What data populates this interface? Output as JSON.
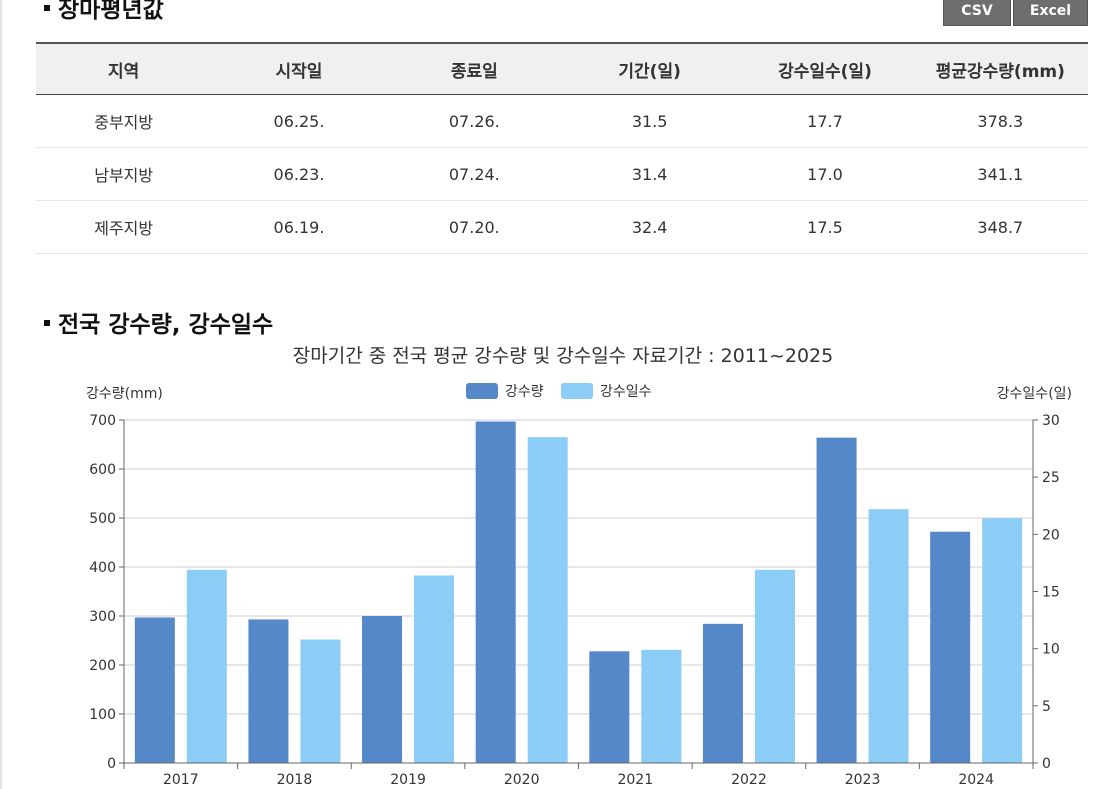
{
  "section1": {
    "title": "장마평년값"
  },
  "buttons": {
    "csv": "CSV",
    "excel": "Excel"
  },
  "table": {
    "headers": [
      "지역",
      "시작일",
      "종료일",
      "기간(일)",
      "강수일수(일)",
      "평균강수량(mm)"
    ],
    "rows": [
      [
        "중부지방",
        "06.25.",
        "07.26.",
        "31.5",
        "17.7",
        "378.3"
      ],
      [
        "남부지방",
        "06.23.",
        "07.24.",
        "31.4",
        "17.0",
        "341.1"
      ],
      [
        "제주지방",
        "06.19.",
        "07.20.",
        "32.4",
        "17.5",
        "348.7"
      ]
    ]
  },
  "section2": {
    "title": "전국 강수량, 강수일수"
  },
  "chart_data": {
    "type": "bar",
    "title": "장마기간 중 전국 평균 강수량 및 강수일수 자료기간 : 2011~2025",
    "categories": [
      "2017",
      "2018",
      "2019",
      "2020",
      "2021",
      "2022",
      "2023",
      "2024"
    ],
    "series": [
      {
        "name": "강수량",
        "axis": "left",
        "color": "#5588c8",
        "values": [
          297,
          293,
          300,
          697,
          228,
          284,
          664,
          472
        ]
      },
      {
        "name": "강수일수",
        "axis": "right",
        "color": "#8bcdf7",
        "values": [
          16.9,
          10.8,
          16.4,
          28.5,
          9.9,
          16.9,
          22.2,
          21.4
        ]
      }
    ],
    "y_left": {
      "label": "강수량(mm)",
      "range": [
        0,
        700
      ],
      "ticks": [
        "0",
        "100",
        "200",
        "300",
        "400",
        "500",
        "600",
        "700"
      ]
    },
    "y_right": {
      "label": "강수일수(일)",
      "range": [
        0,
        30
      ],
      "ticks": [
        "0",
        "5",
        "10",
        "15",
        "20",
        "25",
        "30"
      ]
    },
    "grid": true,
    "legend_position": "top-center"
  }
}
